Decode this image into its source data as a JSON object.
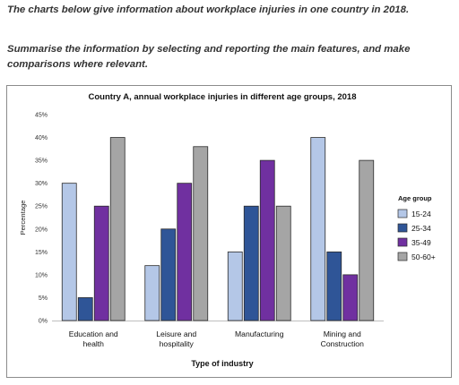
{
  "page": {
    "intro": "The charts below give information about workplace injuries in one country in 2018.",
    "task": "Summarise the information by selecting and reporting the main features, and make comparisons where relevant."
  },
  "chart_data": {
    "type": "bar",
    "title": "Country A, annual workplace injuries in different age groups, 2018",
    "xlabel": "Type of industry",
    "ylabel": "Percentage",
    "ylim": [
      0,
      45
    ],
    "yticks": [
      0,
      5,
      10,
      15,
      20,
      25,
      30,
      35,
      40,
      45
    ],
    "ytick_labels": [
      "0%",
      "5%",
      "10%",
      "15%",
      "20%",
      "25%",
      "30%",
      "35%",
      "40%",
      "45%"
    ],
    "grid": false,
    "legend_title": "Age group",
    "legend_position": "right",
    "categories": [
      [
        "Education and",
        "health"
      ],
      [
        "Leisure and",
        "hospitality"
      ],
      [
        "Manufacturing"
      ],
      [
        "Mining and",
        "Construction"
      ]
    ],
    "series": [
      {
        "name": "15-24",
        "color": "#b4c7e7",
        "values": [
          30,
          12,
          15,
          40
        ]
      },
      {
        "name": "25-34",
        "color": "#2f5597",
        "values": [
          5,
          20,
          25,
          15
        ]
      },
      {
        "name": "35-49",
        "color": "#7030a0",
        "values": [
          25,
          30,
          35,
          10
        ]
      },
      {
        "name": "50-60+",
        "color": "#a5a5a5",
        "values": [
          40,
          38,
          25,
          35
        ]
      }
    ]
  }
}
